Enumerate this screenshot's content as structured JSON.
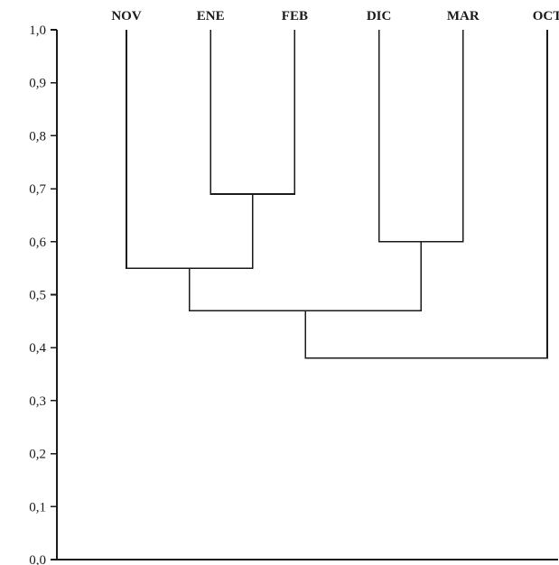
{
  "chart_data": {
    "type": "dendrogram",
    "ylim": [
      0.0,
      1.0
    ],
    "y_ticks": [
      {
        "value": 0.0,
        "label": "0,0"
      },
      {
        "value": 0.1,
        "label": "0,1"
      },
      {
        "value": 0.2,
        "label": "0,2"
      },
      {
        "value": 0.3,
        "label": "0,3"
      },
      {
        "value": 0.4,
        "label": "0,4"
      },
      {
        "value": 0.5,
        "label": "0,5"
      },
      {
        "value": 0.6,
        "label": "0,6"
      },
      {
        "value": 0.7,
        "label": "0,7"
      },
      {
        "value": 0.8,
        "label": "0,8"
      },
      {
        "value": 0.9,
        "label": "0,9"
      },
      {
        "value": 1.0,
        "label": "1,0"
      }
    ],
    "leaves": [
      "NOV",
      "ENE",
      "FEB",
      "DIC",
      "MAR",
      "OCT"
    ],
    "leaf_height": 1.0,
    "merges": [
      {
        "id": "c1",
        "children": [
          "ENE",
          "FEB"
        ],
        "height": 0.69
      },
      {
        "id": "c2",
        "children": [
          "DIC",
          "MAR"
        ],
        "height": 0.6
      },
      {
        "id": "c3",
        "children": [
          "NOV",
          "c1"
        ],
        "height": 0.55
      },
      {
        "id": "c4",
        "children": [
          "c3",
          "c2"
        ],
        "height": 0.47
      },
      {
        "id": "c5",
        "children": [
          "c4",
          "OCT"
        ],
        "height": 0.38
      }
    ]
  },
  "colors": {
    "line": "#1a1a1a",
    "background": "#ffffff"
  }
}
